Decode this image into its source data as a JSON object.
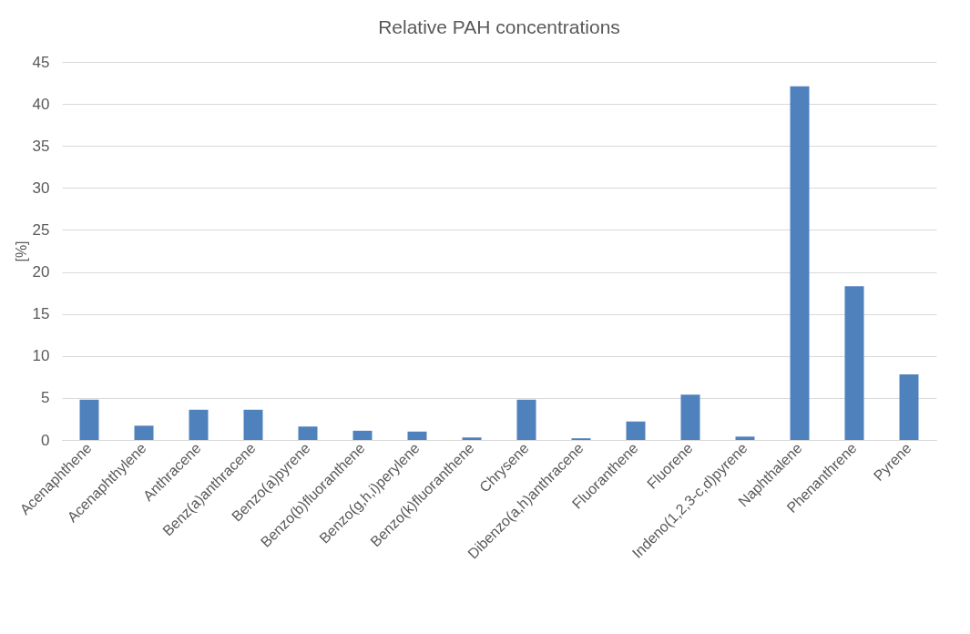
{
  "chart_data": {
    "type": "bar",
    "title": "Relative PAH concentrations",
    "ylabel": "[%]",
    "categories": [
      "Acenaphthene",
      "Acenaphthylene",
      "Anthracene",
      "Benz(a)anthracene",
      "Benzo(a)pyrene",
      "Benzo(b)fluoranthene",
      "Benzo(g,h,i)perylene",
      "Benzo(k)fluoranthene",
      "Chrysene",
      "Dibenzo(a,h)anthracene",
      "Fluoranthene",
      "Fluorene",
      "Indeno(1,2,3-c,d)pyrene",
      "Naphthalene",
      "Phenanthrene",
      "Pyrene"
    ],
    "values": [
      4.8,
      1.7,
      3.6,
      3.6,
      1.6,
      1.1,
      1.0,
      0.3,
      4.8,
      0.2,
      2.2,
      5.4,
      0.4,
      42.1,
      18.3,
      7.8
    ],
    "color": "#4f81bd",
    "ylim": [
      0,
      45
    ],
    "yticks": [
      0,
      5,
      10,
      15,
      20,
      25,
      30,
      35,
      40,
      45
    ],
    "grid": "y"
  }
}
